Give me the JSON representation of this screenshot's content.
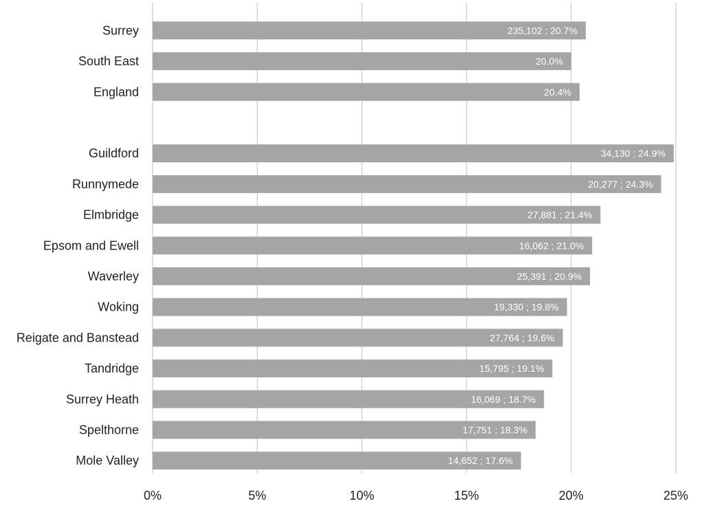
{
  "chart_data": {
    "type": "bar",
    "orientation": "horizontal",
    "title": "",
    "xlabel": "",
    "ylabel": "",
    "xlim": [
      0,
      25
    ],
    "x_ticks": [
      "0%",
      "5%",
      "10%",
      "15%",
      "20%",
      "25%"
    ],
    "grid": "vertical",
    "legend": "none",
    "bar_color": "#a5a5a5",
    "categories": [
      "Surrey",
      "South East",
      "England",
      "",
      "Guildford",
      "Runnymede",
      "Elmbridge",
      "Epsom and Ewell",
      "Waverley",
      "Woking",
      "Reigate and Banstead",
      "Tandridge",
      "Surrey Heath",
      "Spelthorne",
      "Mole Valley"
    ],
    "values": [
      20.7,
      20.0,
      20.4,
      null,
      24.9,
      24.3,
      21.4,
      21.0,
      20.9,
      19.8,
      19.6,
      19.1,
      18.7,
      18.3,
      17.6
    ],
    "data_labels": [
      "235,102 ; 20.7%",
      "20.0%",
      "20.4%",
      "",
      "34,130 ; 24.9%",
      "20,277 ; 24.3%",
      "27,881 ; 21.4%",
      "16,062 ; 21.0%",
      "25,391 ; 20.9%",
      "19,330 ; 19.8%",
      "27,764 ; 19.6%",
      "15,795 ; 19.1%",
      "16,069 ; 18.7%",
      "17,751 ; 18.3%",
      "14,652 ; 17.6%"
    ]
  }
}
